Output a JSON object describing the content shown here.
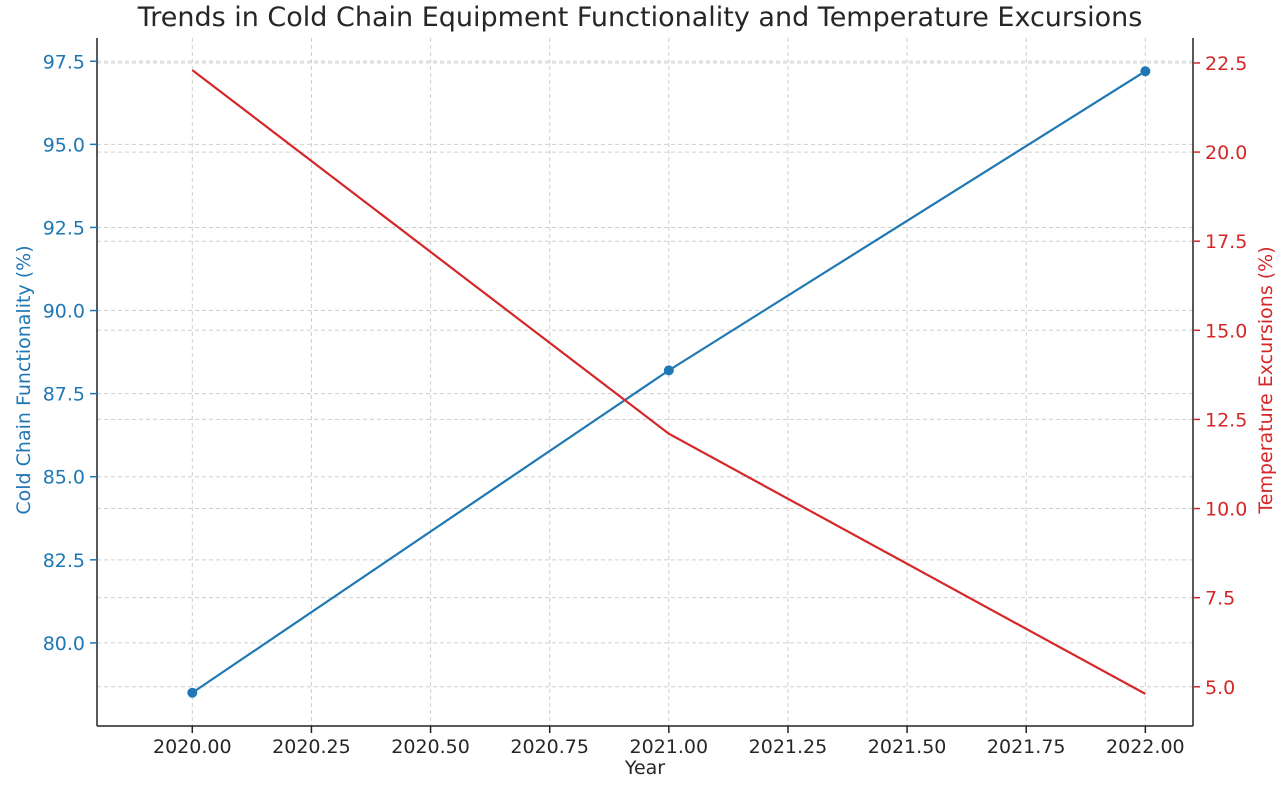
{
  "chart_data": {
    "type": "line",
    "title": "Trends in Cold Chain Equipment Functionality and Temperature Excursions",
    "xlabel": "Year",
    "x": [
      2020,
      2021,
      2022
    ],
    "xlim": [
      2019.8,
      2022.1
    ],
    "xticks": [
      2020.0,
      2020.25,
      2020.5,
      2020.75,
      2021.0,
      2021.25,
      2021.5,
      2021.75,
      2022.0
    ],
    "xtick_labels": [
      "2020.00",
      "2020.25",
      "2020.50",
      "2020.75",
      "2021.00",
      "2021.25",
      "2021.50",
      "2021.75",
      "2022.00"
    ],
    "grid": true,
    "series": [
      {
        "name": "",
        "axis": "left",
        "values": [
          78.5,
          88.2,
          97.2
        ],
        "color": "#1f77b4",
        "marker": "circle"
      },
      {
        "name": "",
        "axis": "right",
        "values": [
          22.3,
          12.1,
          4.8
        ],
        "color": "#d62728",
        "marker": "none"
      }
    ],
    "y_left": {
      "label": "Cold Chain Functionality (%)",
      "ylim": [
        77.5,
        98.2
      ],
      "ticks": [
        80.0,
        82.5,
        85.0,
        87.5,
        90.0,
        92.5,
        95.0,
        97.5
      ],
      "tick_labels": [
        "80.0",
        "82.5",
        "85.0",
        "87.5",
        "90.0",
        "92.5",
        "95.0",
        "97.5"
      ],
      "color": "#1f77b4"
    },
    "y_right": {
      "label": "Temperature Excursions (%)",
      "ylim": [
        3.9,
        23.2
      ],
      "ticks": [
        5.0,
        7.5,
        10.0,
        12.5,
        15.0,
        17.5,
        20.0,
        22.5
      ],
      "tick_labels": [
        "5.0",
        "7.5",
        "10.0",
        "12.5",
        "15.0",
        "17.5",
        "20.0",
        "22.5"
      ],
      "color": "#d62728"
    }
  }
}
